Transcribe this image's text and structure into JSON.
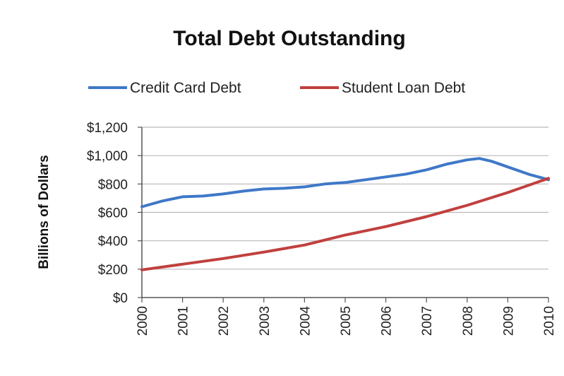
{
  "chart_data": {
    "type": "line",
    "title": "Total Debt Outstanding",
    "ylabel": "Billions of Dollars",
    "xlabel": "",
    "ylim": [
      0,
      1200
    ],
    "xlim": [
      2000,
      2010
    ],
    "x_ticks": [
      "2000",
      "2001",
      "2002",
      "2003",
      "2004",
      "2005",
      "2006",
      "2007",
      "2008",
      "2009",
      "2010"
    ],
    "y_ticks": [
      {
        "value": 0,
        "label": "$0"
      },
      {
        "value": 200,
        "label": "$200"
      },
      {
        "value": 400,
        "label": "$400"
      },
      {
        "value": 600,
        "label": "$600"
      },
      {
        "value": 800,
        "label": "$800"
      },
      {
        "value": 1000,
        "label": "$1,000"
      },
      {
        "value": 1200,
        "label": "$1,200"
      }
    ],
    "grid": true,
    "legend": "top",
    "series": [
      {
        "name": "Credit Card Debt",
        "color": "#3f78c8",
        "x": [
          2000,
          2000.5,
          2001,
          2001.5,
          2002,
          2002.5,
          2003,
          2003.5,
          2004,
          2004.5,
          2005,
          2005.5,
          2006,
          2006.5,
          2007,
          2007.5,
          2008,
          2008.3,
          2008.6,
          2009,
          2009.5,
          2010
        ],
        "values": [
          640,
          680,
          710,
          715,
          730,
          750,
          765,
          770,
          780,
          800,
          810,
          830,
          850,
          870,
          900,
          940,
          970,
          980,
          960,
          920,
          870,
          830
        ]
      },
      {
        "name": "Student Loan Debt",
        "color": "#c0403e",
        "x": [
          2000,
          2001,
          2002,
          2003,
          2004,
          2005,
          2006,
          2007,
          2008,
          2009,
          2010
        ],
        "values": [
          195,
          235,
          275,
          320,
          370,
          440,
          500,
          570,
          650,
          740,
          840
        ]
      }
    ]
  }
}
